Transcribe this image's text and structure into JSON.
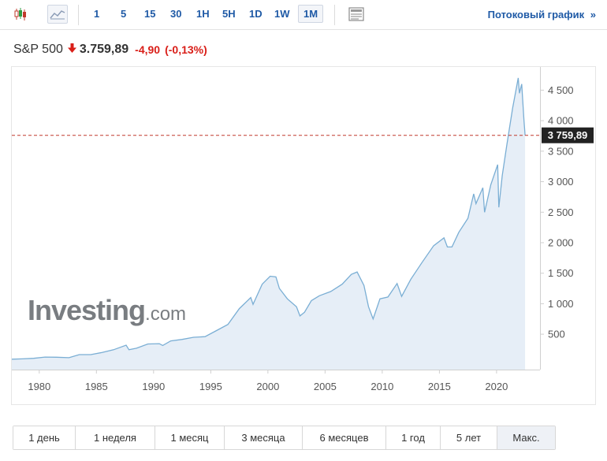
{
  "toolbar": {
    "timeframes": [
      "1",
      "5",
      "15",
      "30",
      "1H",
      "5H",
      "1D",
      "1W",
      "1M"
    ],
    "active_timeframe": "1M",
    "stream_link": "Потоковый график",
    "stream_arrow": "»"
  },
  "quote": {
    "name": "S&P 500",
    "price": "3.759,89",
    "change": "-4,90",
    "change_pct": "(-0,13%)",
    "direction": "down"
  },
  "colors": {
    "accent": "#1f5aa6",
    "down": "#d91e18",
    "line": "#7aaed4",
    "area": "#e6eef7",
    "last_price_label_bg": "#222222"
  },
  "watermark": {
    "main": "Investing",
    "suffix": ".com"
  },
  "ranges": {
    "items": [
      "1 день",
      "1 неделя",
      "1 месяц",
      "3 месяца",
      "6 месяцев",
      "1 год",
      "5 лет",
      "Макс."
    ],
    "active": "Макс."
  },
  "chart_data": {
    "type": "area",
    "title": "",
    "xlabel": "",
    "ylabel": "",
    "x_ticks": [
      "1980",
      "1985",
      "1990",
      "1995",
      "2000",
      "2005",
      "2010",
      "2015",
      "2020"
    ],
    "y_ticks": [
      "500",
      "1 000",
      "1 500",
      "2 000",
      "2 500",
      "3 000",
      "3 500",
      "4 000",
      "4 500"
    ],
    "xlim": [
      1977.6,
      2023.8
    ],
    "ylim": [
      -80,
      4880
    ],
    "last_price": 3759.89,
    "last_price_label": "3 759,89",
    "grid": false,
    "legend": "none",
    "series": [
      {
        "x": [
          1977.6,
          1978.5,
          1979.5,
          1980.5,
          1981.5,
          1982.6,
          1983.5,
          1984.5,
          1985.5,
          1986.5,
          1987.6,
          1987.85,
          1988.5,
          1989.5,
          1990.5,
          1990.8,
          1991.5,
          1992.5,
          1993.5,
          1994.5,
          1995.5,
          1996.5,
          1997.5,
          1998.5,
          1998.7,
          1999.5,
          2000.2,
          2000.7,
          2001.0,
          2001.7,
          2002.5,
          2002.8,
          2003.2,
          2003.8,
          2004.5,
          2005.5,
          2006.5,
          2007.3,
          2007.8,
          2008.4,
          2008.8,
          2009.2,
          2009.8,
          2010.5,
          2011.3,
          2011.7,
          2012.5,
          2013.5,
          2014.5,
          2015.4,
          2015.7,
          2016.1,
          2016.7,
          2017.5,
          2018.0,
          2018.2,
          2018.8,
          2018.95,
          2019.5,
          2020.1,
          2020.2,
          2020.5,
          2020.9,
          2021.4,
          2021.9,
          2022.0,
          2022.2,
          2022.4,
          2022.5
        ],
        "y": [
          90,
          96,
          105,
          125,
          123,
          115,
          165,
          165,
          200,
          245,
          320,
          245,
          270,
          340,
          345,
          315,
          390,
          415,
          450,
          460,
          560,
          660,
          920,
          1100,
          990,
          1320,
          1450,
          1440,
          1250,
          1080,
          950,
          800,
          860,
          1050,
          1130,
          1200,
          1320,
          1480,
          1520,
          1300,
          950,
          750,
          1080,
          1110,
          1330,
          1120,
          1400,
          1680,
          1950,
          2080,
          1930,
          1930,
          2170,
          2400,
          2800,
          2640,
          2900,
          2500,
          2950,
          3280,
          2580,
          3100,
          3600,
          4200,
          4700,
          4450,
          4600,
          4000,
          3760
        ]
      }
    ]
  }
}
